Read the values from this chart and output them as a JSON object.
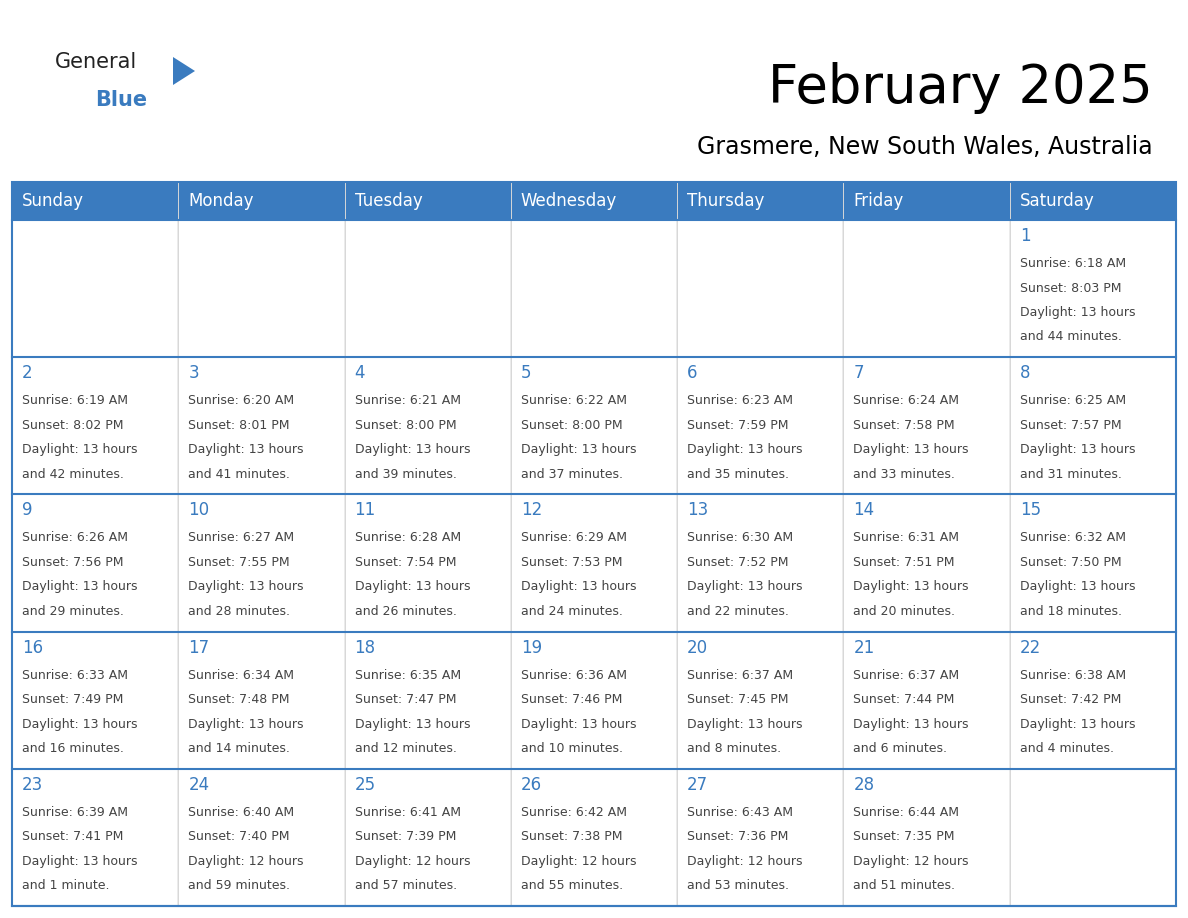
{
  "title": "February 2025",
  "subtitle": "Grasmere, New South Wales, Australia",
  "days_of_week": [
    "Sunday",
    "Monday",
    "Tuesday",
    "Wednesday",
    "Thursday",
    "Friday",
    "Saturday"
  ],
  "header_bg": "#3a7bbf",
  "header_text": "#ffffff",
  "cell_bg": "#ffffff",
  "border_color": "#3a7bbf",
  "row_divider_color": "#3a7bbf",
  "text_color": "#444444",
  "day_number_color": "#3a7bbf",
  "logo_triangle_color": "#3a7bbf",
  "logo_general_color": "#222222",
  "logo_blue_color": "#3a7bbf",
  "title_fontsize": 38,
  "subtitle_fontsize": 17,
  "header_fontsize": 12,
  "day_num_fontsize": 12,
  "cell_text_fontsize": 9,
  "calendar_data": [
    [
      null,
      null,
      null,
      null,
      null,
      null,
      {
        "day": 1,
        "sunrise": "6:18 AM",
        "sunset": "8:03 PM",
        "daylight_line1": "13 hours",
        "daylight_line2": "and 44 minutes."
      }
    ],
    [
      {
        "day": 2,
        "sunrise": "6:19 AM",
        "sunset": "8:02 PM",
        "daylight_line1": "13 hours",
        "daylight_line2": "and 42 minutes."
      },
      {
        "day": 3,
        "sunrise": "6:20 AM",
        "sunset": "8:01 PM",
        "daylight_line1": "13 hours",
        "daylight_line2": "and 41 minutes."
      },
      {
        "day": 4,
        "sunrise": "6:21 AM",
        "sunset": "8:00 PM",
        "daylight_line1": "13 hours",
        "daylight_line2": "and 39 minutes."
      },
      {
        "day": 5,
        "sunrise": "6:22 AM",
        "sunset": "8:00 PM",
        "daylight_line1": "13 hours",
        "daylight_line2": "and 37 minutes."
      },
      {
        "day": 6,
        "sunrise": "6:23 AM",
        "sunset": "7:59 PM",
        "daylight_line1": "13 hours",
        "daylight_line2": "and 35 minutes."
      },
      {
        "day": 7,
        "sunrise": "6:24 AM",
        "sunset": "7:58 PM",
        "daylight_line1": "13 hours",
        "daylight_line2": "and 33 minutes."
      },
      {
        "day": 8,
        "sunrise": "6:25 AM",
        "sunset": "7:57 PM",
        "daylight_line1": "13 hours",
        "daylight_line2": "and 31 minutes."
      }
    ],
    [
      {
        "day": 9,
        "sunrise": "6:26 AM",
        "sunset": "7:56 PM",
        "daylight_line1": "13 hours",
        "daylight_line2": "and 29 minutes."
      },
      {
        "day": 10,
        "sunrise": "6:27 AM",
        "sunset": "7:55 PM",
        "daylight_line1": "13 hours",
        "daylight_line2": "and 28 minutes."
      },
      {
        "day": 11,
        "sunrise": "6:28 AM",
        "sunset": "7:54 PM",
        "daylight_line1": "13 hours",
        "daylight_line2": "and 26 minutes."
      },
      {
        "day": 12,
        "sunrise": "6:29 AM",
        "sunset": "7:53 PM",
        "daylight_line1": "13 hours",
        "daylight_line2": "and 24 minutes."
      },
      {
        "day": 13,
        "sunrise": "6:30 AM",
        "sunset": "7:52 PM",
        "daylight_line1": "13 hours",
        "daylight_line2": "and 22 minutes."
      },
      {
        "day": 14,
        "sunrise": "6:31 AM",
        "sunset": "7:51 PM",
        "daylight_line1": "13 hours",
        "daylight_line2": "and 20 minutes."
      },
      {
        "day": 15,
        "sunrise": "6:32 AM",
        "sunset": "7:50 PM",
        "daylight_line1": "13 hours",
        "daylight_line2": "and 18 minutes."
      }
    ],
    [
      {
        "day": 16,
        "sunrise": "6:33 AM",
        "sunset": "7:49 PM",
        "daylight_line1": "13 hours",
        "daylight_line2": "and 16 minutes."
      },
      {
        "day": 17,
        "sunrise": "6:34 AM",
        "sunset": "7:48 PM",
        "daylight_line1": "13 hours",
        "daylight_line2": "and 14 minutes."
      },
      {
        "day": 18,
        "sunrise": "6:35 AM",
        "sunset": "7:47 PM",
        "daylight_line1": "13 hours",
        "daylight_line2": "and 12 minutes."
      },
      {
        "day": 19,
        "sunrise": "6:36 AM",
        "sunset": "7:46 PM",
        "daylight_line1": "13 hours",
        "daylight_line2": "and 10 minutes."
      },
      {
        "day": 20,
        "sunrise": "6:37 AM",
        "sunset": "7:45 PM",
        "daylight_line1": "13 hours",
        "daylight_line2": "and 8 minutes."
      },
      {
        "day": 21,
        "sunrise": "6:37 AM",
        "sunset": "7:44 PM",
        "daylight_line1": "13 hours",
        "daylight_line2": "and 6 minutes."
      },
      {
        "day": 22,
        "sunrise": "6:38 AM",
        "sunset": "7:42 PM",
        "daylight_line1": "13 hours",
        "daylight_line2": "and 4 minutes."
      }
    ],
    [
      {
        "day": 23,
        "sunrise": "6:39 AM",
        "sunset": "7:41 PM",
        "daylight_line1": "13 hours",
        "daylight_line2": "and 1 minute."
      },
      {
        "day": 24,
        "sunrise": "6:40 AM",
        "sunset": "7:40 PM",
        "daylight_line1": "12 hours",
        "daylight_line2": "and 59 minutes."
      },
      {
        "day": 25,
        "sunrise": "6:41 AM",
        "sunset": "7:39 PM",
        "daylight_line1": "12 hours",
        "daylight_line2": "and 57 minutes."
      },
      {
        "day": 26,
        "sunrise": "6:42 AM",
        "sunset": "7:38 PM",
        "daylight_line1": "12 hours",
        "daylight_line2": "and 55 minutes."
      },
      {
        "day": 27,
        "sunrise": "6:43 AM",
        "sunset": "7:36 PM",
        "daylight_line1": "12 hours",
        "daylight_line2": "and 53 minutes."
      },
      {
        "day": 28,
        "sunrise": "6:44 AM",
        "sunset": "7:35 PM",
        "daylight_line1": "12 hours",
        "daylight_line2": "and 51 minutes."
      },
      null
    ]
  ]
}
